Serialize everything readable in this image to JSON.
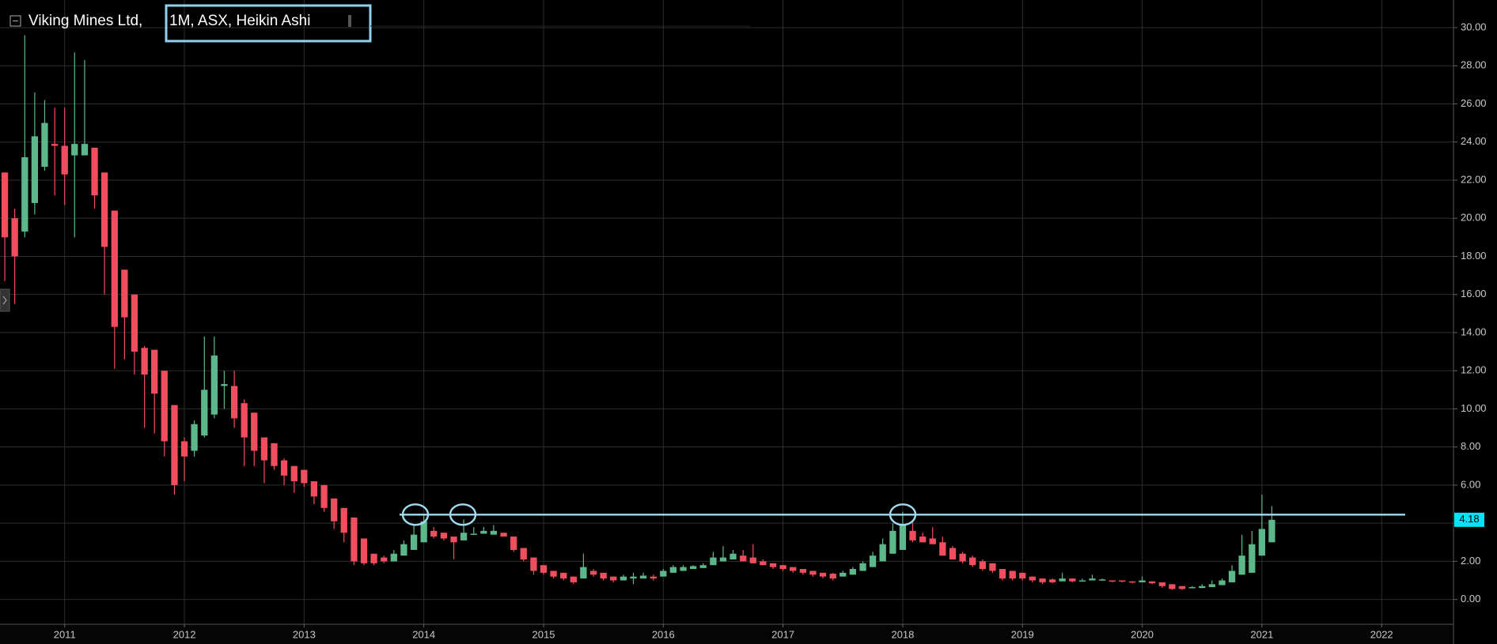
{
  "chart_data": {
    "type": "candlestick",
    "title": "Viking Mines Ltd,",
    "subtitle": "1M, ASX, Heikin Ashi",
    "up_color": "#5cb88a",
    "down_color": "#f04e5e",
    "resistance_level": 4.45,
    "resistance_color": "#9fdcf2",
    "grid": true,
    "xlim": [
      2010.46,
      2022.6
    ],
    "xticks": [
      2011,
      2012,
      2013,
      2014,
      2015,
      2016,
      2017,
      2018,
      2019,
      2020,
      2021,
      2022
    ],
    "ylim": [
      -1.3,
      31.45
    ],
    "yticks": [
      {
        "value": 0,
        "label": "0.00"
      },
      {
        "value": 2,
        "label": "2.00"
      },
      {
        "value": 4,
        "label": "4.00"
      },
      {
        "value": 6,
        "label": "6.00"
      },
      {
        "value": 8,
        "label": "8.00"
      },
      {
        "value": 10,
        "label": "10.00"
      },
      {
        "value": 12,
        "label": "12.00"
      },
      {
        "value": 14,
        "label": "14.00"
      },
      {
        "value": 16,
        "label": "16.00"
      },
      {
        "value": 18,
        "label": "18.00"
      },
      {
        "value": 20,
        "label": "20.00"
      },
      {
        "value": 22,
        "label": "22.00"
      },
      {
        "value": 24,
        "label": "24.00"
      },
      {
        "value": 26,
        "label": "26.00"
      },
      {
        "value": 28,
        "label": "28.00"
      },
      {
        "value": 30,
        "label": "30.00"
      }
    ],
    "x": [
      2010.5,
      2010.583,
      2010.667,
      2010.75,
      2010.833,
      2010.917,
      2011,
      2011.083,
      2011.167,
      2011.25,
      2011.333,
      2011.417,
      2011.5,
      2011.583,
      2011.667,
      2011.75,
      2011.833,
      2011.917,
      2012,
      2012.083,
      2012.167,
      2012.25,
      2012.333,
      2012.417,
      2012.5,
      2012.583,
      2012.667,
      2012.75,
      2012.833,
      2012.917,
      2013,
      2013.083,
      2013.167,
      2013.25,
      2013.333,
      2013.417,
      2013.5,
      2013.583,
      2013.667,
      2013.75,
      2013.833,
      2013.917,
      2014,
      2014.083,
      2014.167,
      2014.25,
      2014.333,
      2014.417,
      2014.5,
      2014.583,
      2014.667,
      2014.75,
      2014.833,
      2014.917,
      2015,
      2015.083,
      2015.167,
      2015.25,
      2015.333,
      2015.417,
      2015.5,
      2015.583,
      2015.667,
      2015.75,
      2015.833,
      2015.917,
      2016,
      2016.083,
      2016.167,
      2016.25,
      2016.333,
      2016.417,
      2016.5,
      2016.583,
      2016.667,
      2016.75,
      2016.833,
      2016.917,
      2017,
      2017.083,
      2017.167,
      2017.25,
      2017.333,
      2017.417,
      2017.5,
      2017.583,
      2017.667,
      2017.75,
      2017.833,
      2017.917,
      2018,
      2018.083,
      2018.167,
      2018.25,
      2018.333,
      2018.417,
      2018.5,
      2018.583,
      2018.667,
      2018.75,
      2018.833,
      2018.917,
      2019,
      2019.083,
      2019.167,
      2019.25,
      2019.333,
      2019.417,
      2019.5,
      2019.583,
      2019.667,
      2019.75,
      2019.833,
      2019.917,
      2020,
      2020.083,
      2020.167,
      2020.25,
      2020.333,
      2020.417,
      2020.5,
      2020.583,
      2020.667,
      2020.75,
      2020.833,
      2020.917,
      2021,
      2021.083
    ],
    "open": [
      22.4,
      20.0,
      19.3,
      20.8,
      22.7,
      23.9,
      23.8,
      23.3,
      23.3,
      23.7,
      22.4,
      20.4,
      17.3,
      16.0,
      13.2,
      13.1,
      12.0,
      10.2,
      8.3,
      7.8,
      8.6,
      9.7,
      11.2,
      11.2,
      10.3,
      9.8,
      8.5,
      8.2,
      7.3,
      7.0,
      6.8,
      6.2,
      6.0,
      5.3,
      4.8,
      4.3,
      3.2,
      2.4,
      2.2,
      2.0,
      2.3,
      2.6,
      3.0,
      3.6,
      3.5,
      3.3,
      3.1,
      3.4,
      3.45,
      3.4,
      3.5,
      3.3,
      2.7,
      2.2,
      1.8,
      1.5,
      1.4,
      1.2,
      1.1,
      1.5,
      1.4,
      1.2,
      1.0,
      1.1,
      1.1,
      1.2,
      1.2,
      1.4,
      1.5,
      1.6,
      1.65,
      1.8,
      2.0,
      2.1,
      2.3,
      2.2,
      2.0,
      1.9,
      1.8,
      1.7,
      1.6,
      1.5,
      1.4,
      1.35,
      1.2,
      1.3,
      1.5,
      1.7,
      2.0,
      2.4,
      2.6,
      3.6,
      3.3,
      3.2,
      3.0,
      2.7,
      2.4,
      2.2,
      2.0,
      1.9,
      1.6,
      1.5,
      1.4,
      1.2,
      1.1,
      1.05,
      0.95,
      1.1,
      0.95,
      1.0,
      1.0,
      1.0,
      1.0,
      0.95,
      0.9,
      0.95,
      0.9,
      0.8,
      0.7,
      0.6,
      0.6,
      0.65,
      0.75,
      0.9,
      1.3,
      1.4,
      2.3,
      3.0
    ],
    "high": [
      22.4,
      20.5,
      29.6,
      26.6,
      26.2,
      25.8,
      25.8,
      28.7,
      28.3,
      23.7,
      22.4,
      20.4,
      17.3,
      16.0,
      13.3,
      13.1,
      12.0,
      10.2,
      8.5,
      9.4,
      13.8,
      13.8,
      12.0,
      12.0,
      10.5,
      9.8,
      8.5,
      8.2,
      7.4,
      7.0,
      6.8,
      6.2,
      6.0,
      5.3,
      4.8,
      4.3,
      3.2,
      2.4,
      2.3,
      2.6,
      3.1,
      3.9,
      4.4,
      3.8,
      3.5,
      3.3,
      4.2,
      3.8,
      3.8,
      3.9,
      3.5,
      3.3,
      2.7,
      2.2,
      1.8,
      1.5,
      1.4,
      1.2,
      2.4,
      1.6,
      1.4,
      1.2,
      1.3,
      1.4,
      1.4,
      1.3,
      1.6,
      1.8,
      1.8,
      1.8,
      1.9,
      2.5,
      2.8,
      2.6,
      2.6,
      2.9,
      2.1,
      1.9,
      1.8,
      1.7,
      1.6,
      1.5,
      1.4,
      1.4,
      1.5,
      1.7,
      2.0,
      2.5,
      3.2,
      4.0,
      4.6,
      4.1,
      3.5,
      3.8,
      3.3,
      2.8,
      2.5,
      2.3,
      2.1,
      1.9,
      1.6,
      1.5,
      1.4,
      1.2,
      1.1,
      1.1,
      1.4,
      1.1,
      1.1,
      1.3,
      1.1,
      1.0,
      1.0,
      0.95,
      1.2,
      0.95,
      0.9,
      0.8,
      0.7,
      0.7,
      0.8,
      1.0,
      1.1,
      1.8,
      3.4,
      3.6,
      5.5,
      4.9
    ],
    "low": [
      16.7,
      15.5,
      19.0,
      20.2,
      22.5,
      21.2,
      20.7,
      19.0,
      23.3,
      20.5,
      16.0,
      12.1,
      12.6,
      11.8,
      9.0,
      8.7,
      7.5,
      5.5,
      6.2,
      7.5,
      8.5,
      9.5,
      10.0,
      9.0,
      7.0,
      7.0,
      6.1,
      6.8,
      6.0,
      5.6,
      5.9,
      5.0,
      4.6,
      3.7,
      3.0,
      1.8,
      1.8,
      1.8,
      1.9,
      2.0,
      2.3,
      2.6,
      3.0,
      3.2,
      3.1,
      2.1,
      3.1,
      3.4,
      3.45,
      3.4,
      3.3,
      2.5,
      2.0,
      1.3,
      1.3,
      1.1,
      1.0,
      0.8,
      1.1,
      1.2,
      1.0,
      0.9,
      1.0,
      0.8,
      1.1,
      1.0,
      1.2,
      1.4,
      1.5,
      1.6,
      1.65,
      1.8,
      2.0,
      2.1,
      2.0,
      1.9,
      1.8,
      1.6,
      1.5,
      1.4,
      1.3,
      1.2,
      1.1,
      1.0,
      1.2,
      1.3,
      1.5,
      1.7,
      2.0,
      2.4,
      2.6,
      3.0,
      3.0,
      2.9,
      2.3,
      2.1,
      1.9,
      1.7,
      1.5,
      1.4,
      1.0,
      1.0,
      1.0,
      0.9,
      0.8,
      0.85,
      0.95,
      0.9,
      0.95,
      1.0,
      1.0,
      0.9,
      0.9,
      0.85,
      0.9,
      0.8,
      0.6,
      0.5,
      0.5,
      0.6,
      0.6,
      0.65,
      0.75,
      0.9,
      1.3,
      1.4,
      2.3,
      3.0
    ],
    "close": [
      19.0,
      18.0,
      23.2,
      24.3,
      25.0,
      23.8,
      22.3,
      23.9,
      23.9,
      21.2,
      18.5,
      14.3,
      14.8,
      13.0,
      11.8,
      10.8,
      8.3,
      6.0,
      7.5,
      9.2,
      11.0,
      12.8,
      11.3,
      9.5,
      8.5,
      7.8,
      7.3,
      7.0,
      6.5,
      6.2,
      6.1,
      5.4,
      4.8,
      4.1,
      3.5,
      2.0,
      1.9,
      1.9,
      2.0,
      2.4,
      2.9,
      3.4,
      4.1,
      3.3,
      3.2,
      3.0,
      3.5,
      3.45,
      3.6,
      3.6,
      3.3,
      2.6,
      2.1,
      1.5,
      1.4,
      1.2,
      1.1,
      0.9,
      1.7,
      1.3,
      1.1,
      1.0,
      1.2,
      1.2,
      1.25,
      1.1,
      1.5,
      1.7,
      1.7,
      1.75,
      1.8,
      2.2,
      2.2,
      2.4,
      2.0,
      1.9,
      1.8,
      1.7,
      1.6,
      1.5,
      1.4,
      1.3,
      1.2,
      1.1,
      1.4,
      1.6,
      1.9,
      2.3,
      2.9,
      3.6,
      3.9,
      3.1,
      3.0,
      2.9,
      2.3,
      2.1,
      2.0,
      1.8,
      1.6,
      1.5,
      1.1,
      1.1,
      1.1,
      1.0,
      0.9,
      0.9,
      1.1,
      0.95,
      1.0,
      1.1,
      1.05,
      0.95,
      0.95,
      0.9,
      1.0,
      0.85,
      0.7,
      0.55,
      0.55,
      0.65,
      0.7,
      0.8,
      1.0,
      1.5,
      2.3,
      2.9,
      3.7,
      4.18
    ]
  }
}
